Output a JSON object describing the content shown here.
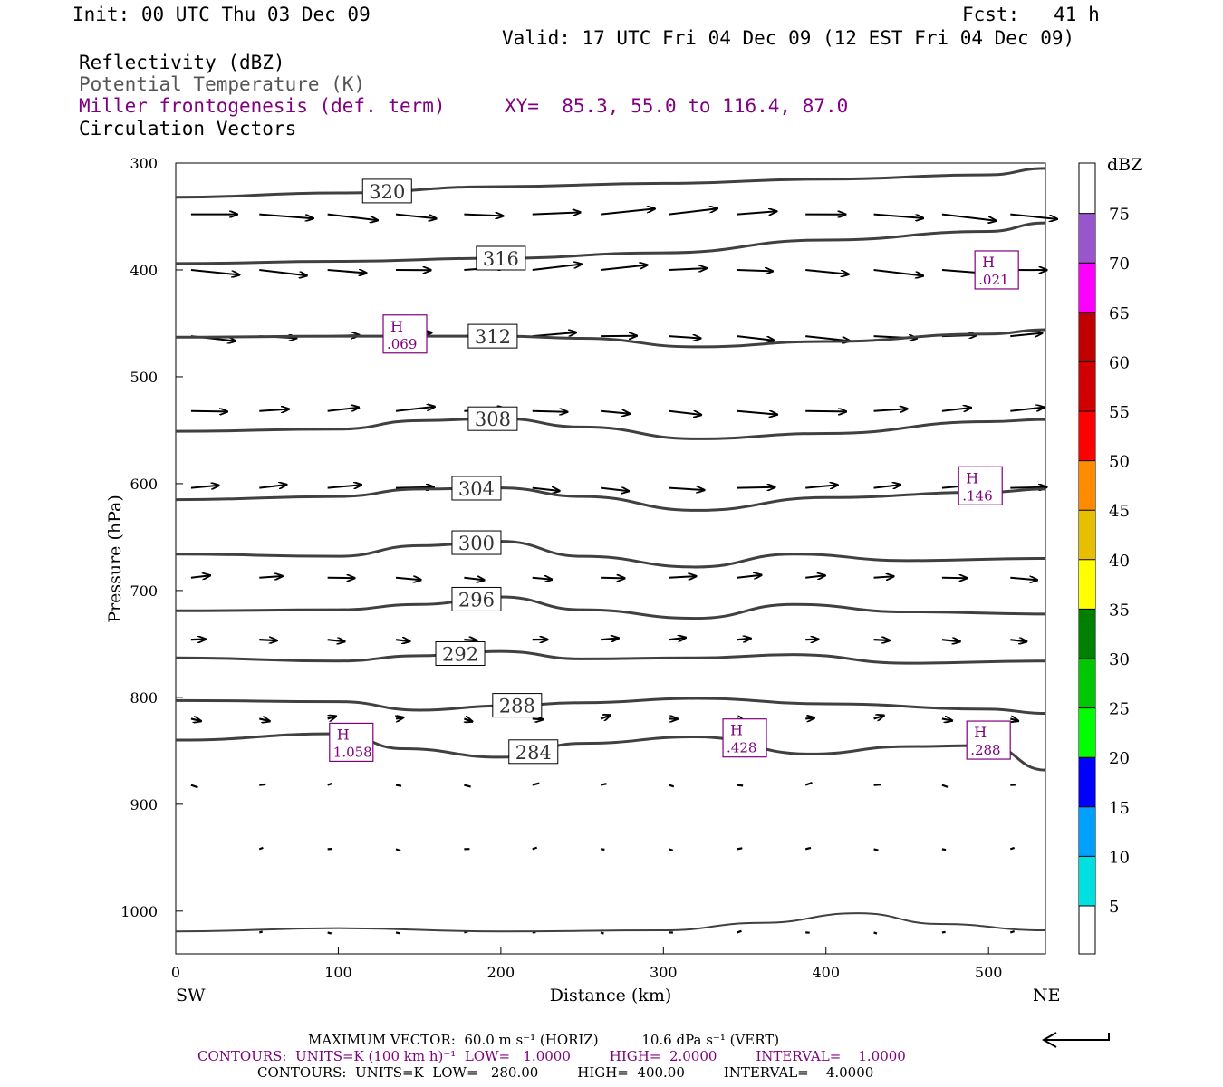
{
  "header": {
    "init": "Init: 00 UTC Thu 03 Dec 09",
    "fcst": "Fcst:   41 h",
    "valid": "Valid: 17 UTC Fri 04 Dec 09 (12 EST Fri 04 Dec 09)",
    "fields": [
      "Reflectivity (dBZ)",
      "Potential Temperature (K)",
      "Miller frontogenesis (def. term)",
      "Circulation Vectors"
    ],
    "xy": "XY=  85.3, 55.0 to 116.4, 87.0"
  },
  "colors": {
    "frontogenesis": "#800080",
    "theta_contours": "#404040",
    "vectors": "#000000"
  },
  "chart_data": {
    "type": "cross-section",
    "xlabel": "Distance (km)",
    "ylabel": "Pressure (hPa)",
    "x_ticks": [
      "0",
      "100",
      "200",
      "300",
      "400",
      "500"
    ],
    "y_ticks": [
      "300",
      "400",
      "500",
      "600",
      "700",
      "800",
      "900",
      "1000"
    ],
    "xlim": [
      0,
      535
    ],
    "ylim": [
      1040,
      300
    ],
    "x_end_labels": {
      "left": "SW",
      "right": "NE"
    },
    "theta_contours": [
      {
        "label": "320",
        "points": [
          [
            0,
            332
          ],
          [
            100,
            328
          ],
          [
            200,
            322
          ],
          [
            300,
            319
          ],
          [
            400,
            315
          ],
          [
            500,
            311
          ],
          [
            535,
            305
          ]
        ]
      },
      {
        "label": "316",
        "points": [
          [
            0,
            394
          ],
          [
            100,
            392
          ],
          [
            200,
            389
          ],
          [
            300,
            384
          ],
          [
            400,
            372
          ],
          [
            500,
            364
          ],
          [
            535,
            356
          ]
        ]
      },
      {
        "label": "312",
        "points": [
          [
            0,
            463
          ],
          [
            100,
            462
          ],
          [
            200,
            462
          ],
          [
            250,
            464
          ],
          [
            320,
            472
          ],
          [
            400,
            467
          ],
          [
            500,
            460
          ],
          [
            535,
            456
          ]
        ]
      },
      {
        "label": "308",
        "points": [
          [
            0,
            551
          ],
          [
            100,
            549
          ],
          [
            150,
            541
          ],
          [
            200,
            539
          ],
          [
            250,
            547
          ],
          [
            320,
            558
          ],
          [
            400,
            553
          ],
          [
            500,
            542
          ],
          [
            535,
            540
          ]
        ]
      },
      {
        "label": "304",
        "points": [
          [
            0,
            615
          ],
          [
            100,
            612
          ],
          [
            150,
            605
          ],
          [
            200,
            604
          ],
          [
            250,
            612
          ],
          [
            320,
            625
          ],
          [
            400,
            613
          ],
          [
            500,
            608
          ],
          [
            535,
            605
          ]
        ]
      },
      {
        "label": "300",
        "points": [
          [
            0,
            666
          ],
          [
            100,
            668
          ],
          [
            150,
            658
          ],
          [
            200,
            654
          ],
          [
            250,
            668
          ],
          [
            320,
            678
          ],
          [
            380,
            666
          ],
          [
            450,
            672
          ],
          [
            535,
            670
          ]
        ]
      },
      {
        "label": "296",
        "points": [
          [
            0,
            719
          ],
          [
            100,
            718
          ],
          [
            150,
            713
          ],
          [
            200,
            706
          ],
          [
            250,
            718
          ],
          [
            320,
            726
          ],
          [
            380,
            713
          ],
          [
            450,
            720
          ],
          [
            535,
            722
          ]
        ]
      },
      {
        "label": "292",
        "points": [
          [
            0,
            763
          ],
          [
            100,
            766
          ],
          [
            150,
            761
          ],
          [
            200,
            757
          ],
          [
            250,
            764
          ],
          [
            320,
            763
          ],
          [
            380,
            760
          ],
          [
            450,
            768
          ],
          [
            535,
            766
          ]
        ]
      },
      {
        "label": "288",
        "points": [
          [
            0,
            803
          ],
          [
            100,
            804
          ],
          [
            150,
            812
          ],
          [
            200,
            808
          ],
          [
            250,
            805
          ],
          [
            320,
            801
          ],
          [
            400,
            806
          ],
          [
            500,
            811
          ],
          [
            535,
            815
          ]
        ]
      },
      {
        "label": "284",
        "points": [
          [
            0,
            840
          ],
          [
            100,
            834
          ],
          [
            140,
            848
          ],
          [
            200,
            856
          ],
          [
            250,
            843
          ],
          [
            320,
            837
          ],
          [
            390,
            853
          ],
          [
            450,
            846
          ],
          [
            500,
            845
          ],
          [
            535,
            868
          ]
        ]
      },
      {
        "label": "",
        "points": [
          [
            0,
            1019
          ],
          [
            100,
            1016
          ],
          [
            200,
            1019
          ],
          [
            300,
            1018
          ],
          [
            360,
            1011
          ],
          [
            420,
            1002
          ],
          [
            470,
            1012
          ],
          [
            535,
            1018
          ]
        ]
      }
    ],
    "extrema": [
      {
        "type": "H",
        "value": ".021",
        "x": 505,
        "p": 400
      },
      {
        "type": "H",
        "value": ".069",
        "x": 141,
        "p": 460
      },
      {
        "type": "H",
        "value": ".146",
        "x": 495,
        "p": 602
      },
      {
        "type": "H",
        "value": "1.058",
        "x": 108,
        "p": 842
      },
      {
        "type": "H",
        "value": ".428",
        "x": 350,
        "p": 838
      },
      {
        "type": "H",
        "value": ".288",
        "x": 500,
        "p": 840
      }
    ],
    "color_scale": {
      "label": "dBZ",
      "ticks": [
        "5",
        "10",
        "15",
        "20",
        "25",
        "30",
        "35",
        "40",
        "45",
        "50",
        "55",
        "60",
        "65",
        "70",
        "75"
      ],
      "colors": [
        "#00e0e0",
        "#00a0ff",
        "#0000ff",
        "#00ff00",
        "#00c800",
        "#008000",
        "#ffff00",
        "#e6c000",
        "#ff8c00",
        "#ff0000",
        "#d00000",
        "#c00000",
        "#ff00ff",
        "#9955cc"
      ]
    }
  },
  "footer": {
    "max_vector": "MAXIMUM VECTOR:  60.0 m s⁻¹ (HORIZ)          10.6 dPa s⁻¹ (VERT)",
    "contours1": "CONTOURS:  UNITS=K (100 km h)⁻¹  LOW=   1.0000         HIGH=  2.0000         INTERVAL=    1.0000",
    "contours2": "CONTOURS:  UNITS=K  LOW=   280.00         HIGH=  400.00         INTERVAL=    4.0000"
  }
}
